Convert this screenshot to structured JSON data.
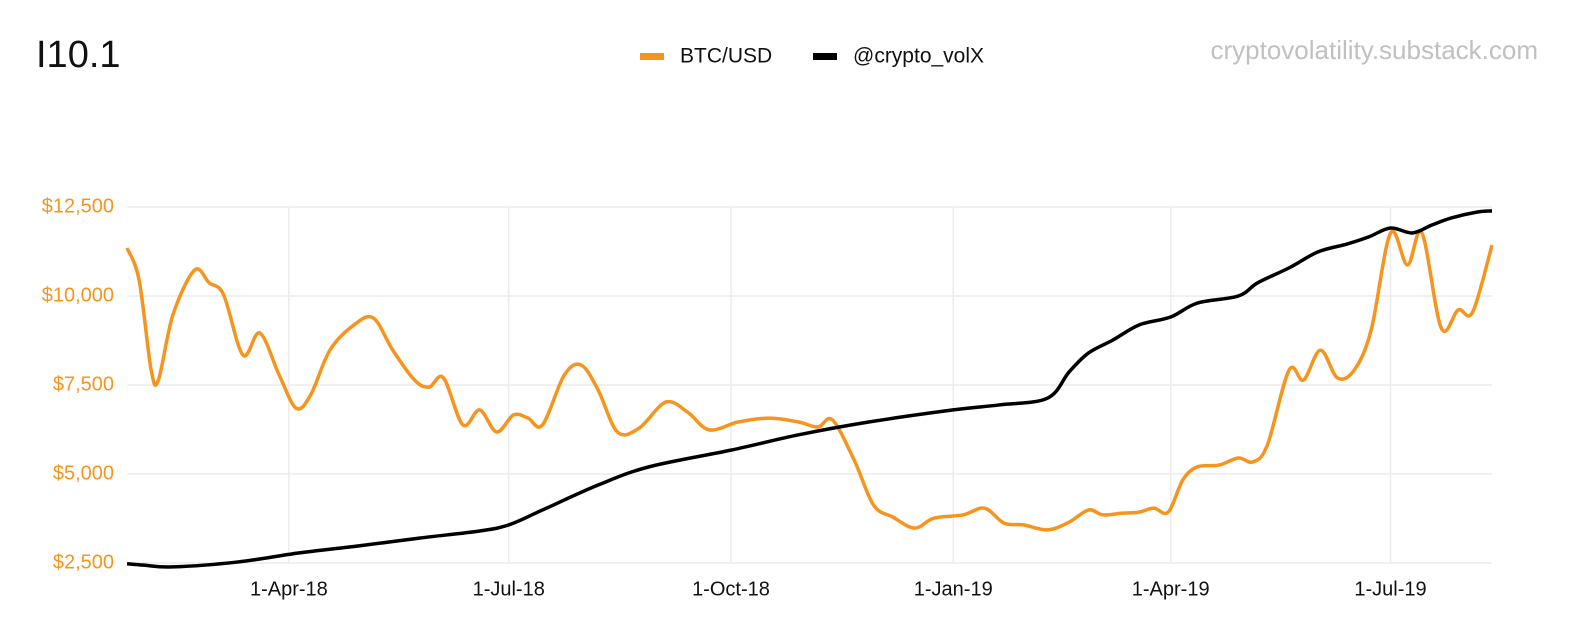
{
  "chart_data": {
    "type": "line",
    "title": "I10.1",
    "watermark": "cryptovolatility.substack.com",
    "xlim": [
      "2018-01-24",
      "2019-08-12"
    ],
    "xticks": [
      {
        "value": "2018-04-01",
        "label": "1-Apr-18"
      },
      {
        "value": "2018-07-01",
        "label": "1-Jul-18"
      },
      {
        "value": "2018-10-01",
        "label": "1-Oct-18"
      },
      {
        "value": "2019-01-01",
        "label": "1-Jan-19"
      },
      {
        "value": "2019-04-01",
        "label": "1-Apr-19"
      },
      {
        "value": "2019-07-01",
        "label": "1-Jul-19"
      }
    ],
    "ylim": [
      2500,
      12500
    ],
    "yticks": [
      {
        "value": 2500,
        "label": "$2,500"
      },
      {
        "value": 5000,
        "label": "$5,000"
      },
      {
        "value": 7500,
        "label": "$7,500"
      },
      {
        "value": 10000,
        "label": "$10,000"
      },
      {
        "value": 12500,
        "label": "$12,500"
      }
    ],
    "grid": true,
    "tick_color": "#f7941d",
    "series": [
      {
        "name": "BTC/USD",
        "color": "#f7941d",
        "x": [
          "2018-01-24",
          "2018-01-29",
          "2018-02-03",
          "2018-02-06",
          "2018-02-12",
          "2018-02-21",
          "2018-02-27",
          "2018-03-05",
          "2018-03-13",
          "2018-03-20",
          "2018-03-28",
          "2018-04-04",
          "2018-04-10",
          "2018-04-18",
          "2018-04-28",
          "2018-05-06",
          "2018-05-14",
          "2018-05-23",
          "2018-05-29",
          "2018-06-04",
          "2018-06-12",
          "2018-06-19",
          "2018-06-26",
          "2018-07-03",
          "2018-07-09",
          "2018-07-15",
          "2018-07-24",
          "2018-07-31",
          "2018-08-07",
          "2018-08-15",
          "2018-08-24",
          "2018-09-04",
          "2018-09-13",
          "2018-09-22",
          "2018-10-04",
          "2018-10-17",
          "2018-10-29",
          "2018-11-06",
          "2018-11-12",
          "2018-11-21",
          "2018-11-29",
          "2018-12-07",
          "2018-12-16",
          "2018-12-24",
          "2019-01-05",
          "2019-01-14",
          "2019-01-22",
          "2019-01-30",
          "2019-02-09",
          "2019-02-18",
          "2019-02-26",
          "2019-03-04",
          "2019-03-12",
          "2019-03-19",
          "2019-03-25",
          "2019-03-31",
          "2019-04-06",
          "2019-04-12",
          "2019-04-21",
          "2019-04-29",
          "2019-05-05",
          "2019-05-11",
          "2019-05-20",
          "2019-05-26",
          "2019-06-02",
          "2019-06-09",
          "2019-06-16",
          "2019-06-23",
          "2019-07-01",
          "2019-07-08",
          "2019-07-14",
          "2019-07-22",
          "2019-07-29",
          "2019-08-04",
          "2019-08-12"
        ],
        "values": [
          11350,
          10450,
          7920,
          7640,
          9470,
          10730,
          10370,
          10030,
          8340,
          8960,
          7780,
          6850,
          7220,
          8480,
          9190,
          9380,
          8480,
          7640,
          7440,
          7700,
          6380,
          6800,
          6180,
          6660,
          6570,
          6380,
          7780,
          8060,
          7360,
          6180,
          6290,
          7020,
          6740,
          6240,
          6460,
          6570,
          6460,
          6320,
          6520,
          5390,
          4130,
          3790,
          3480,
          3760,
          3850,
          4040,
          3620,
          3570,
          3430,
          3650,
          3990,
          3850,
          3900,
          3930,
          4040,
          3930,
          4830,
          5200,
          5250,
          5450,
          5340,
          5810,
          7920,
          7640,
          8480,
          7700,
          7920,
          9050,
          11770,
          10870,
          11770,
          9100,
          9610,
          9550,
          11430
        ]
      },
      {
        "name": "@crypto_volX",
        "color": "#000000",
        "x": [
          "2018-01-24",
          "2018-01-31",
          "2018-02-12",
          "2018-03-11",
          "2018-04-05",
          "2018-04-30",
          "2018-05-25",
          "2018-06-19",
          "2018-07-01",
          "2018-07-15",
          "2018-08-07",
          "2018-08-28",
          "2018-10-01",
          "2018-10-29",
          "2018-11-27",
          "2019-01-01",
          "2019-01-20",
          "2019-02-09",
          "2019-02-18",
          "2019-02-26",
          "2019-03-08",
          "2019-03-19",
          "2019-04-01",
          "2019-04-12",
          "2019-04-29",
          "2019-05-07",
          "2019-05-20",
          "2019-06-01",
          "2019-06-13",
          "2019-06-22",
          "2019-07-01",
          "2019-07-10",
          "2019-07-18",
          "2019-07-26",
          "2019-08-06",
          "2019-08-12"
        ],
        "values": [
          2480,
          2440,
          2390,
          2530,
          2780,
          2980,
          3200,
          3400,
          3570,
          3990,
          4690,
          5200,
          5670,
          6100,
          6460,
          6800,
          6940,
          7130,
          7870,
          8400,
          8760,
          9190,
          9410,
          9800,
          10000,
          10370,
          10790,
          11240,
          11460,
          11660,
          11910,
          11770,
          11990,
          12190,
          12360,
          12390
        ]
      }
    ]
  }
}
